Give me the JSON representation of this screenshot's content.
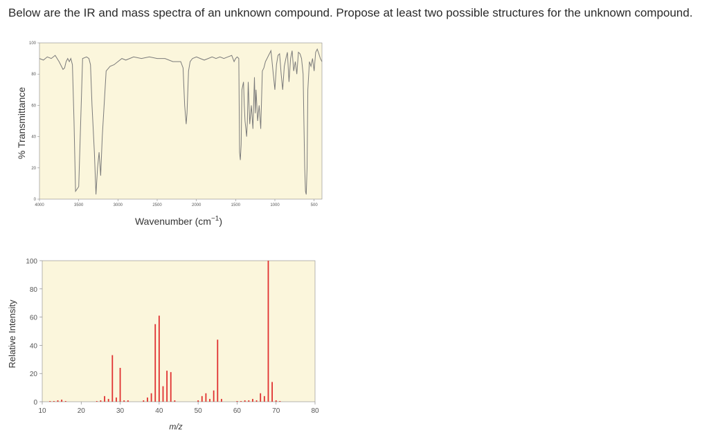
{
  "question": "Below are the IR and mass spectra of an unknown compound. Propose at least two possible structures for the unknown compound.",
  "colors": {
    "plot_bg": "#fbf6dc",
    "ir_line": "#7a7a7a",
    "ms_bar": "#e03030",
    "axis": "#888888"
  },
  "chart_data": [
    {
      "type": "line",
      "ylabel": "% Transmittance",
      "xlabel_main": "Wavenumber (cm",
      "xlabel_sup": "−1",
      "xlabel_close": ")",
      "xlim": [
        4000,
        400
      ],
      "ylim": [
        0,
        100
      ],
      "xticks": [
        4000,
        3500,
        3000,
        2500,
        2000,
        1500,
        1000,
        500
      ],
      "yticks": [
        0,
        20,
        40,
        60,
        80,
        100
      ],
      "grid": false,
      "x": [
        4000,
        3950,
        3900,
        3850,
        3800,
        3750,
        3700,
        3680,
        3660,
        3640,
        3620,
        3600,
        3580,
        3560,
        3540,
        3500,
        3450,
        3400,
        3370,
        3350,
        3330,
        3300,
        3280,
        3260,
        3240,
        3220,
        3200,
        3150,
        3100,
        3050,
        3000,
        2950,
        2900,
        2850,
        2800,
        2700,
        2600,
        2500,
        2400,
        2300,
        2200,
        2170,
        2150,
        2130,
        2120,
        2100,
        2080,
        2050,
        2000,
        1950,
        1900,
        1850,
        1800,
        1750,
        1700,
        1650,
        1600,
        1550,
        1520,
        1500,
        1480,
        1460,
        1450,
        1440,
        1430,
        1420,
        1400,
        1390,
        1380,
        1370,
        1360,
        1350,
        1340,
        1320,
        1300,
        1280,
        1260,
        1250,
        1240,
        1220,
        1200,
        1180,
        1160,
        1140,
        1120,
        1100,
        1080,
        1060,
        1050,
        1040,
        1020,
        1000,
        980,
        960,
        940,
        920,
        900,
        880,
        860,
        840,
        820,
        800,
        780,
        760,
        740,
        720,
        700,
        680,
        660,
        640,
        630,
        620,
        610,
        600,
        590,
        580,
        560,
        540,
        520,
        500,
        480,
        460,
        440,
        420,
        400
      ],
      "y": [
        90,
        89,
        91,
        90,
        92,
        88,
        83,
        84,
        88,
        90,
        88,
        90,
        86,
        50,
        5,
        8,
        90,
        91,
        90,
        86,
        60,
        30,
        3,
        20,
        30,
        15,
        40,
        82,
        85,
        86,
        88,
        90,
        89,
        90,
        91,
        90,
        91,
        90,
        90,
        88,
        88,
        84,
        60,
        48,
        55,
        82,
        88,
        90,
        91,
        90,
        89,
        90,
        91,
        90,
        91,
        90,
        91,
        92,
        88,
        90,
        91,
        90,
        30,
        25,
        35,
        70,
        75,
        60,
        50,
        45,
        40,
        50,
        75,
        48,
        60,
        45,
        78,
        55,
        70,
        50,
        60,
        45,
        82,
        84,
        88,
        90,
        92,
        94,
        95,
        90,
        80,
        70,
        86,
        92,
        93,
        80,
        70,
        85,
        90,
        94,
        75,
        90,
        95,
        82,
        88,
        80,
        94,
        93,
        90,
        80,
        50,
        20,
        5,
        3,
        20,
        70,
        88,
        85,
        90,
        82,
        94,
        96,
        93,
        90,
        88
      ]
    },
    {
      "type": "bar",
      "ylabel": "Relative Intensity",
      "xlabel": "m/z",
      "xlim": [
        10,
        80
      ],
      "ylim": [
        0,
        100
      ],
      "xticks": [
        10,
        20,
        30,
        40,
        50,
        60,
        70,
        80
      ],
      "yticks": [
        0,
        20,
        40,
        60,
        80,
        100
      ],
      "grid": false,
      "x": [
        12,
        13,
        14,
        15,
        16,
        24,
        25,
        26,
        27,
        28,
        29,
        30,
        31,
        32,
        36,
        37,
        38,
        39,
        40,
        41,
        42,
        43,
        44,
        50,
        51,
        52,
        53,
        54,
        55,
        56,
        60,
        61,
        62,
        63,
        64,
        65,
        66,
        67,
        68,
        69,
        70,
        71
      ],
      "y": [
        0.5,
        0.5,
        1,
        1.5,
        0.5,
        0.5,
        1,
        4,
        2,
        33,
        3,
        24,
        1,
        1,
        1,
        3,
        6,
        55,
        61,
        11,
        22,
        21,
        1,
        1,
        4,
        6,
        2,
        8,
        44,
        2,
        0.5,
        0.5,
        1,
        1,
        2,
        1,
        6,
        4,
        100,
        14,
        1,
        0.5
      ]
    }
  ],
  "ir_tick_labels": [
    "4000",
    "3500",
    "3000",
    "2500",
    "2000",
    "1500",
    "1000",
    "500"
  ],
  "ir_y_labels": [
    "0",
    "20",
    "40",
    "60",
    "80",
    "100"
  ],
  "ms_tick_labels": [
    "10",
    "20",
    "30",
    "40",
    "50",
    "60",
    "70",
    "80"
  ],
  "ms_y_labels": [
    "0",
    "20",
    "40",
    "60",
    "80",
    "100"
  ]
}
